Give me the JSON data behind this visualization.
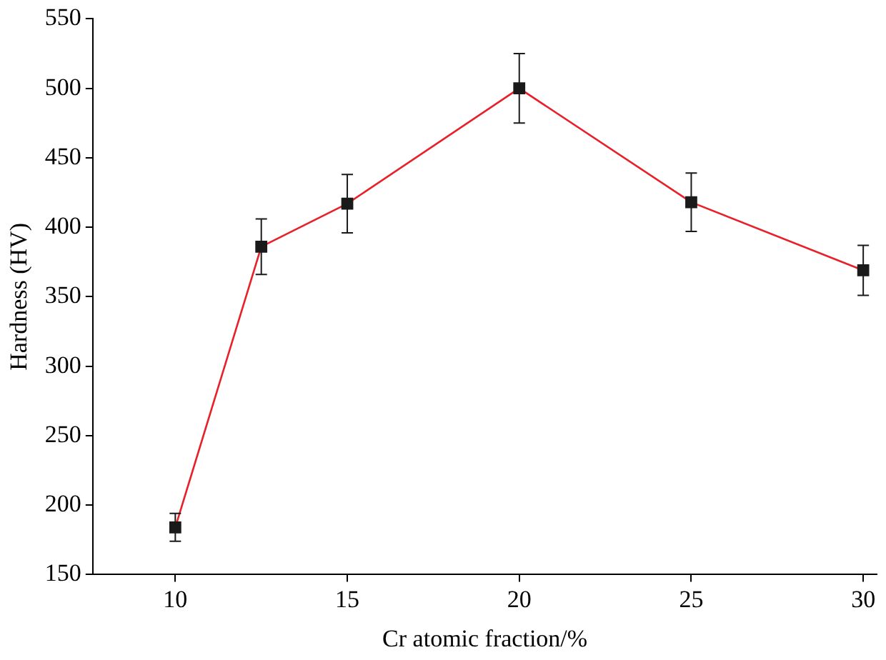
{
  "chart_data": {
    "type": "line",
    "xlabel": "Cr atomic fraction/%",
    "ylabel": "Hardness (HV)",
    "x": [
      10,
      12.5,
      15,
      20,
      25,
      30
    ],
    "series": [
      {
        "color": "#e8202a",
        "values": [
          184,
          386,
          417,
          500,
          418,
          369
        ],
        "errors": [
          10,
          20,
          21,
          25,
          21,
          18
        ]
      }
    ],
    "xlim": [
      7.6,
      30.4
    ],
    "xticks": [
      10,
      15,
      20,
      25,
      30
    ],
    "ylim": [
      150,
      550
    ],
    "yticks": [
      150,
      200,
      250,
      300,
      350,
      400,
      450,
      500,
      550
    ],
    "grid": false,
    "legend": false,
    "marker": "square",
    "line_style": "solid"
  }
}
